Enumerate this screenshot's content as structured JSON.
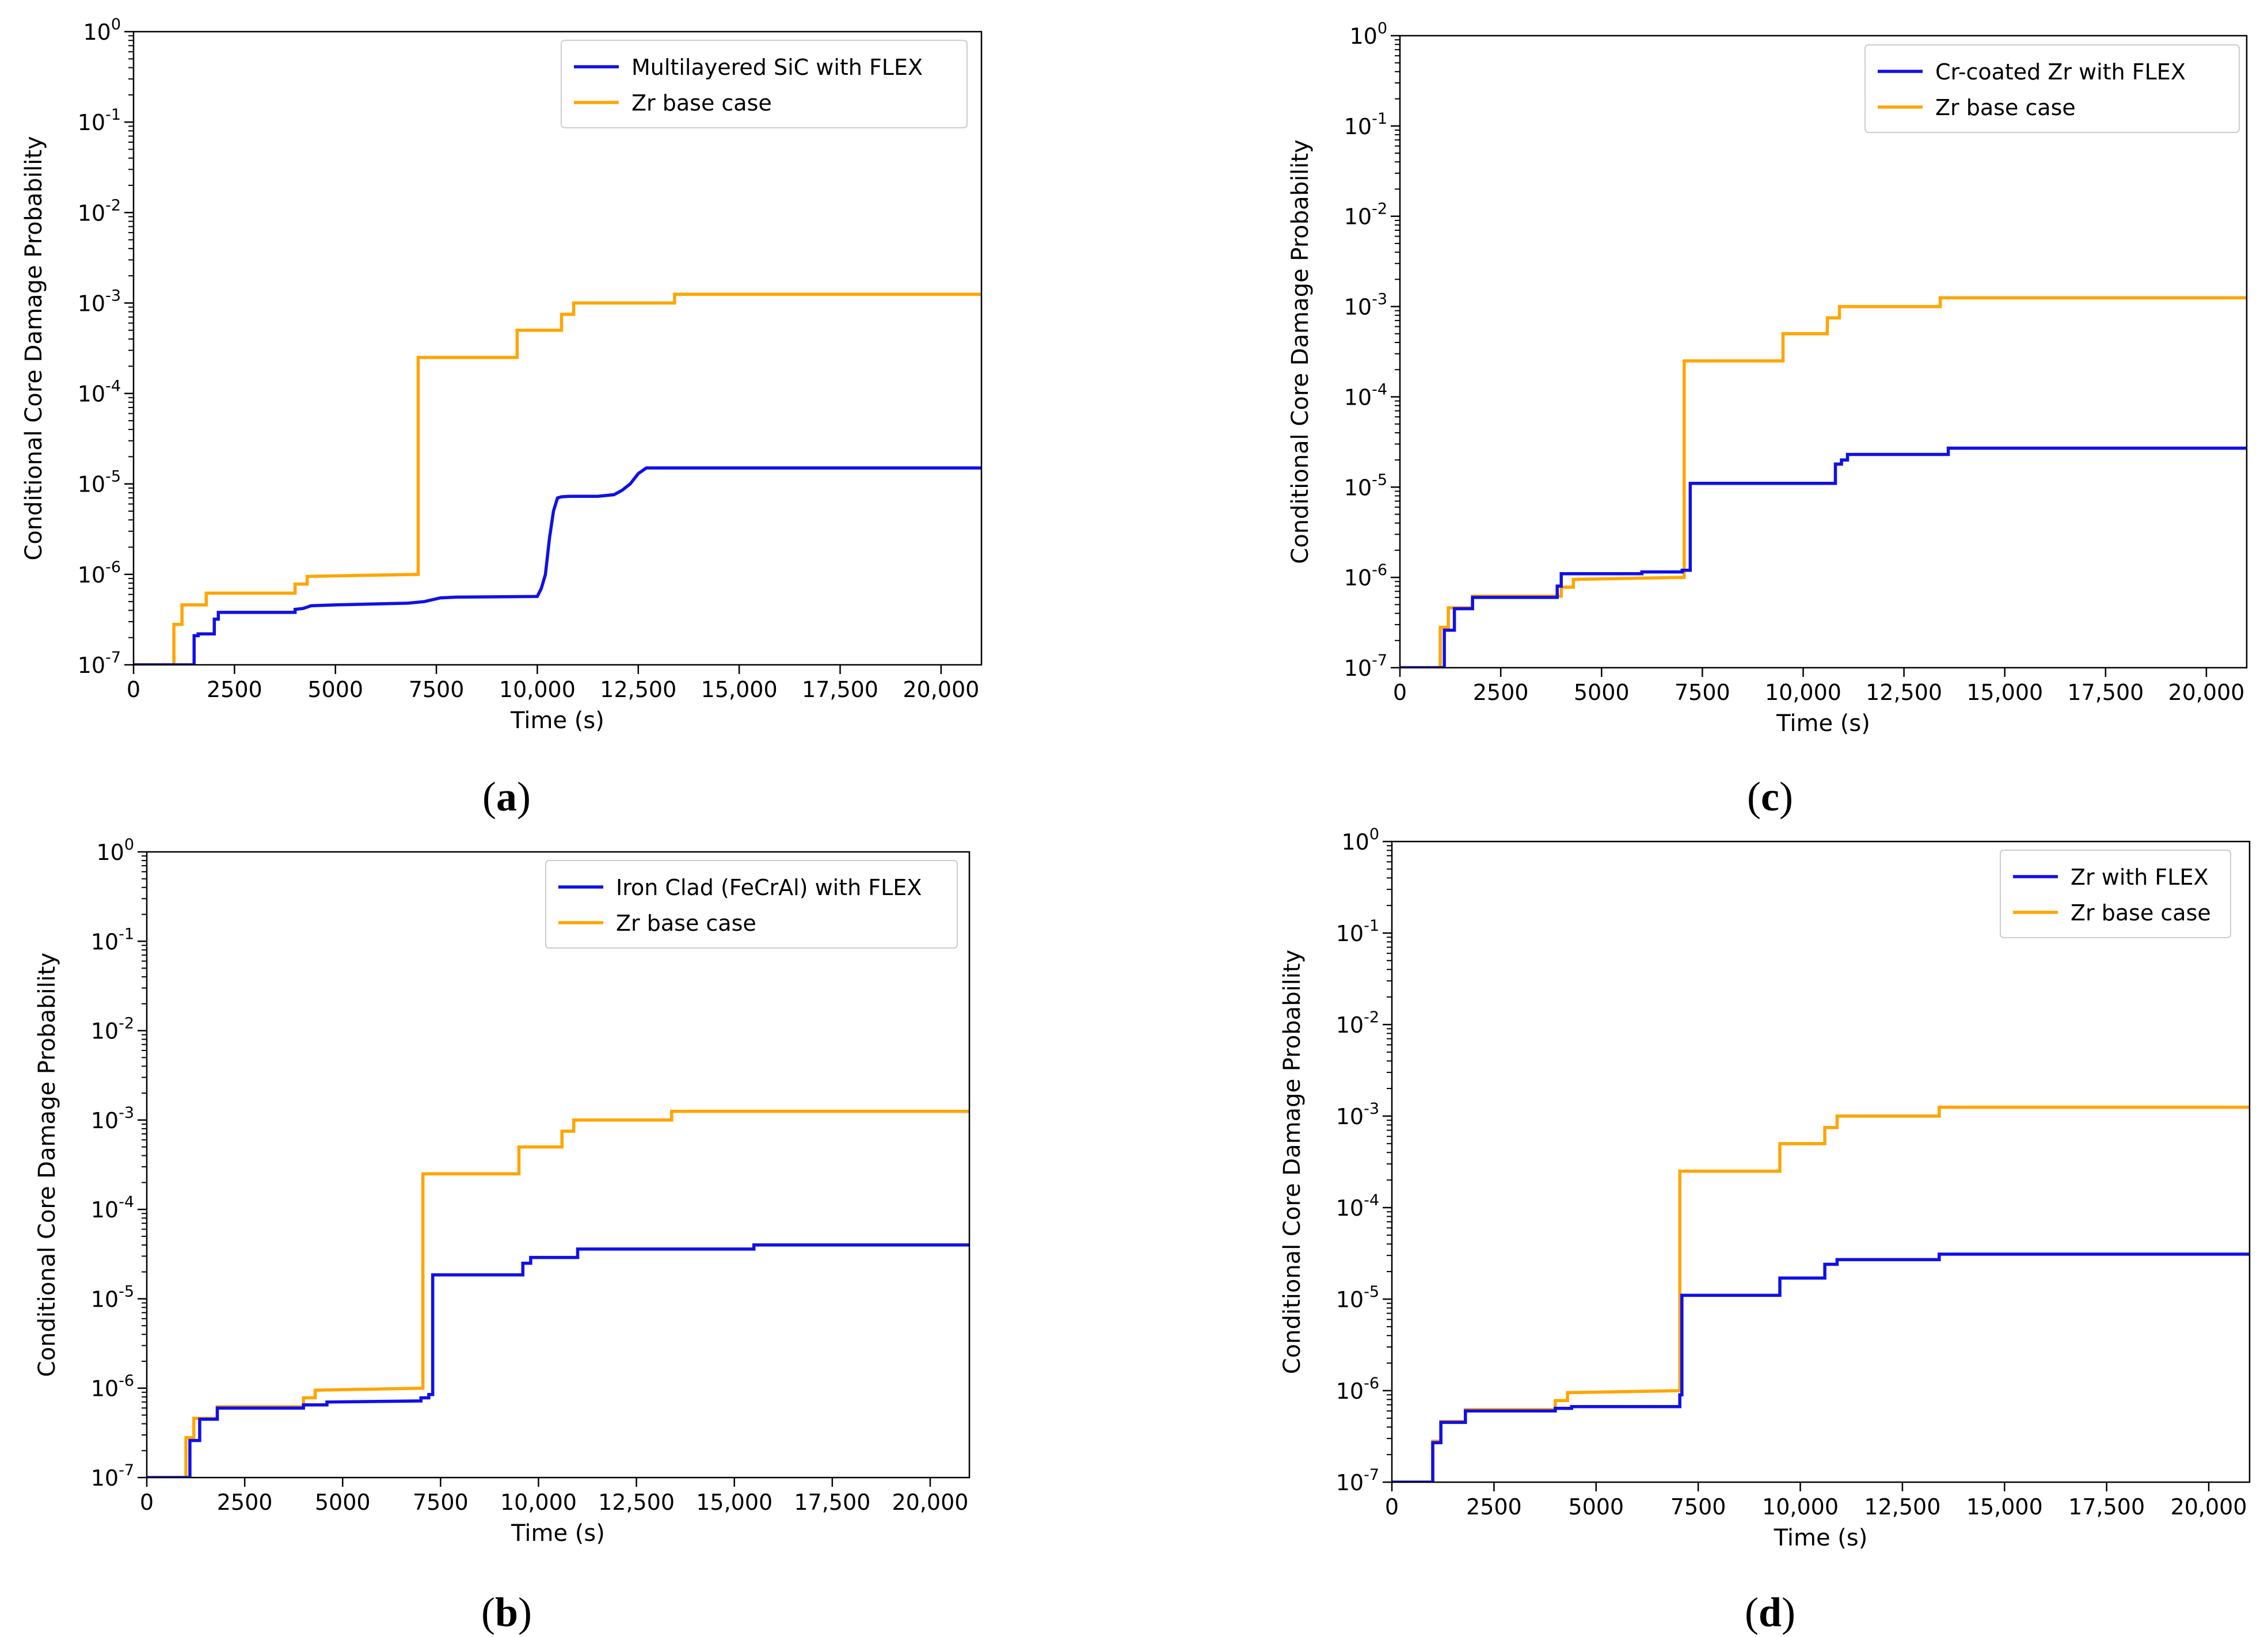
{
  "chart_data": [
    {
      "type": "line",
      "panel": "a",
      "caption": "(a)",
      "xlabel": "Time (s)",
      "ylabel": "Conditional Core Damage Probability",
      "xlim": [
        0,
        21000
      ],
      "ylim": [
        1e-07,
        1
      ],
      "yscale": "log",
      "xticks": [
        0,
        2500,
        5000,
        7500,
        10000,
        12500,
        15000,
        17500,
        20000
      ],
      "xtick_labels": [
        "0",
        "2500",
        "5000",
        "7500",
        "10,000",
        "12,500",
        "15,000",
        "17,500",
        "20,000"
      ],
      "yticks": [
        1e-07,
        1e-06,
        1e-05,
        0.0001,
        0.001,
        0.01,
        0.1,
        1
      ],
      "ytick_exponents": [
        "-7",
        "-6",
        "-5",
        "-4",
        "-3",
        "-2",
        "-1",
        "0"
      ],
      "ytick_base": "10",
      "legend_position": "top-right",
      "series": [
        {
          "name": "Multilayered SiC with FLEX",
          "color": "#1010e8",
          "x": [
            0,
            1500,
            1500,
            1600,
            1600,
            2000,
            2000,
            2100,
            2100,
            4000,
            4000,
            4200,
            4400,
            5000,
            6800,
            7200,
            7600,
            8000,
            10000,
            10100,
            10200,
            10300,
            10400,
            10500,
            10600,
            10800,
            11500,
            11900,
            12100,
            12300,
            12500,
            12700,
            13000,
            21000
          ],
          "y": [
            1e-07,
            1e-07,
            2.1e-07,
            2.1e-07,
            2.2e-07,
            2.2e-07,
            3.2e-07,
            3.2e-07,
            3.8e-07,
            3.8e-07,
            4.1e-07,
            4.2e-07,
            4.5e-07,
            4.6e-07,
            4.8e-07,
            5e-07,
            5.5e-07,
            5.6e-07,
            5.7e-07,
            7e-07,
            1e-06,
            2.5e-06,
            5e-06,
            7e-06,
            7.2e-06,
            7.3e-06,
            7.3e-06,
            7.6e-06,
            8.5e-06,
            1e-05,
            1.3e-05,
            1.5e-05,
            1.5e-05,
            1.5e-05
          ]
        },
        {
          "name": "Zr base case",
          "color": "#ffa500",
          "x": [
            0,
            1000,
            1000,
            1200,
            1200,
            1800,
            1800,
            4000,
            4000,
            4300,
            4300,
            7050,
            7050,
            9500,
            9500,
            10600,
            10600,
            10900,
            10900,
            13400,
            13400,
            21000
          ],
          "y": [
            1e-07,
            1e-07,
            2.8e-07,
            2.8e-07,
            4.6e-07,
            4.6e-07,
            6.2e-07,
            6.2e-07,
            7.8e-07,
            7.8e-07,
            9.5e-07,
            1e-06,
            0.00025,
            0.00025,
            0.0005,
            0.0005,
            0.00075,
            0.00075,
            0.001,
            0.001,
            0.00125,
            0.00125
          ]
        }
      ]
    },
    {
      "type": "line",
      "panel": "b",
      "caption": "(b)",
      "xlabel": "Time (s)",
      "ylabel": "Conditional Core Damage Probability",
      "xlim": [
        0,
        21000
      ],
      "ylim": [
        1e-07,
        1
      ],
      "yscale": "log",
      "xticks": [
        0,
        2500,
        5000,
        7500,
        10000,
        12500,
        15000,
        17500,
        20000
      ],
      "xtick_labels": [
        "0",
        "2500",
        "5000",
        "7500",
        "10,000",
        "12,500",
        "15,000",
        "17,500",
        "20,000"
      ],
      "yticks": [
        1e-07,
        1e-06,
        1e-05,
        0.0001,
        0.001,
        0.01,
        0.1,
        1
      ],
      "ytick_exponents": [
        "-7",
        "-6",
        "-5",
        "-4",
        "-3",
        "-2",
        "-1",
        "0"
      ],
      "ytick_base": "10",
      "legend_position": "top-right",
      "series": [
        {
          "name": "Iron Clad (FeCrAl) with FLEX",
          "color": "#1010e8",
          "x": [
            0,
            1100,
            1100,
            1350,
            1350,
            1800,
            1800,
            4000,
            4000,
            4600,
            4600,
            7000,
            7000,
            7200,
            7200,
            7300,
            7300,
            9600,
            9600,
            9800,
            9800,
            11000,
            11000,
            15500,
            15500,
            21000
          ],
          "y": [
            1e-07,
            1e-07,
            2.6e-07,
            2.6e-07,
            4.5e-07,
            4.5e-07,
            6e-07,
            6e-07,
            6.5e-07,
            6.5e-07,
            7e-07,
            7.2e-07,
            7.8e-07,
            7.8e-07,
            8.5e-07,
            8.5e-07,
            1.85e-05,
            1.85e-05,
            2.5e-05,
            2.5e-05,
            2.9e-05,
            2.9e-05,
            3.6e-05,
            3.6e-05,
            4e-05,
            4e-05
          ]
        },
        {
          "name": "Zr base case",
          "color": "#ffa500",
          "x": [
            0,
            1000,
            1000,
            1200,
            1200,
            1800,
            1800,
            4000,
            4000,
            4300,
            4300,
            7050,
            7050,
            9500,
            9500,
            10600,
            10600,
            10900,
            10900,
            13400,
            13400,
            21000
          ],
          "y": [
            1e-07,
            1e-07,
            2.8e-07,
            2.8e-07,
            4.6e-07,
            4.6e-07,
            6.2e-07,
            6.2e-07,
            7.8e-07,
            7.8e-07,
            9.5e-07,
            1e-06,
            0.00025,
            0.00025,
            0.0005,
            0.0005,
            0.00075,
            0.00075,
            0.001,
            0.001,
            0.00125,
            0.00125
          ]
        }
      ]
    },
    {
      "type": "line",
      "panel": "c",
      "caption": "(c)",
      "xlabel": "Time (s)",
      "ylabel": "Conditional Core Damage Probability",
      "xlim": [
        0,
        21000
      ],
      "ylim": [
        1e-07,
        1
      ],
      "yscale": "log",
      "xticks": [
        0,
        2500,
        5000,
        7500,
        10000,
        12500,
        15000,
        17500,
        20000
      ],
      "xtick_labels": [
        "0",
        "2500",
        "5000",
        "7500",
        "10,000",
        "12,500",
        "15,000",
        "17,500",
        "20,000"
      ],
      "yticks": [
        1e-07,
        1e-06,
        1e-05,
        0.0001,
        0.001,
        0.01,
        0.1,
        1
      ],
      "ytick_exponents": [
        "-7",
        "-6",
        "-5",
        "-4",
        "-3",
        "-2",
        "-1",
        "0"
      ],
      "ytick_base": "10",
      "legend_position": "top-right",
      "series": [
        {
          "name": "Cr-coated Zr with FLEX",
          "color": "#1010e8",
          "x": [
            0,
            1100,
            1100,
            1350,
            1350,
            1800,
            1800,
            3900,
            3900,
            4000,
            4000,
            6000,
            6000,
            7000,
            7000,
            7200,
            7200,
            10800,
            10800,
            10950,
            10950,
            11100,
            11100,
            13600,
            13600,
            21000
          ],
          "y": [
            1e-07,
            1e-07,
            2.6e-07,
            2.6e-07,
            4.5e-07,
            4.5e-07,
            6e-07,
            6e-07,
            8e-07,
            8e-07,
            1.1e-06,
            1.1e-06,
            1.15e-06,
            1.15e-06,
            1.2e-06,
            1.2e-06,
            1.1e-05,
            1.1e-05,
            1.8e-05,
            1.8e-05,
            2e-05,
            2e-05,
            2.3e-05,
            2.3e-05,
            2.7e-05,
            2.7e-05
          ]
        },
        {
          "name": "Zr base case",
          "color": "#ffa500",
          "x": [
            0,
            1000,
            1000,
            1200,
            1200,
            1800,
            1800,
            4000,
            4000,
            4300,
            4300,
            7050,
            7050,
            9500,
            9500,
            10600,
            10600,
            10900,
            10900,
            13400,
            13400,
            21000
          ],
          "y": [
            1e-07,
            1e-07,
            2.8e-07,
            2.8e-07,
            4.6e-07,
            4.6e-07,
            6.2e-07,
            6.2e-07,
            7.8e-07,
            7.8e-07,
            9.5e-07,
            1e-06,
            0.00025,
            0.00025,
            0.0005,
            0.0005,
            0.00075,
            0.00075,
            0.001,
            0.001,
            0.00125,
            0.00125
          ]
        }
      ]
    },
    {
      "type": "line",
      "panel": "d",
      "caption": "(d)",
      "xlabel": "Time (s)",
      "ylabel": "Conditional Core Damage Probability",
      "xlim": [
        0,
        21000
      ],
      "ylim": [
        1e-07,
        1
      ],
      "yscale": "log",
      "xticks": [
        0,
        2500,
        5000,
        7500,
        10000,
        12500,
        15000,
        17500,
        20000
      ],
      "xtick_labels": [
        "0",
        "2500",
        "5000",
        "7500",
        "10,000",
        "12,500",
        "15,000",
        "17,500",
        "20,000"
      ],
      "yticks": [
        1e-07,
        1e-06,
        1e-05,
        0.0001,
        0.001,
        0.01,
        0.1,
        1
      ],
      "ytick_exponents": [
        "-7",
        "-6",
        "-5",
        "-4",
        "-3",
        "-2",
        "-1",
        "0"
      ],
      "ytick_base": "10",
      "legend_position": "top-right",
      "series": [
        {
          "name": "Zr with FLEX",
          "color": "#1010e8",
          "x": [
            0,
            1000,
            1000,
            1200,
            1200,
            1800,
            1800,
            4000,
            4000,
            4400,
            4400,
            7050,
            7050,
            7100,
            7100,
            9500,
            9500,
            10600,
            10600,
            10900,
            10900,
            13400,
            13400,
            21000
          ],
          "y": [
            1e-07,
            1e-07,
            2.7e-07,
            2.7e-07,
            4.5e-07,
            4.5e-07,
            6e-07,
            6e-07,
            6.4e-07,
            6.4e-07,
            6.7e-07,
            6.7e-07,
            9e-07,
            9e-07,
            1.1e-05,
            1.1e-05,
            1.7e-05,
            1.7e-05,
            2.4e-05,
            2.4e-05,
            2.7e-05,
            2.7e-05,
            3.1e-05,
            3.1e-05
          ]
        },
        {
          "name": "Zr base case",
          "color": "#ffa500",
          "x": [
            0,
            1000,
            1000,
            1200,
            1200,
            1800,
            1800,
            4000,
            4000,
            4300,
            4300,
            7050,
            7050,
            9500,
            9500,
            10600,
            10600,
            10900,
            10900,
            13400,
            13400,
            21000
          ],
          "y": [
            1e-07,
            1e-07,
            2.8e-07,
            2.8e-07,
            4.6e-07,
            4.6e-07,
            6.2e-07,
            6.2e-07,
            7.8e-07,
            7.8e-07,
            9.5e-07,
            1e-06,
            0.00025,
            0.00025,
            0.0005,
            0.0005,
            0.00075,
            0.00075,
            0.001,
            0.001,
            0.00125,
            0.00125
          ]
        }
      ]
    }
  ]
}
